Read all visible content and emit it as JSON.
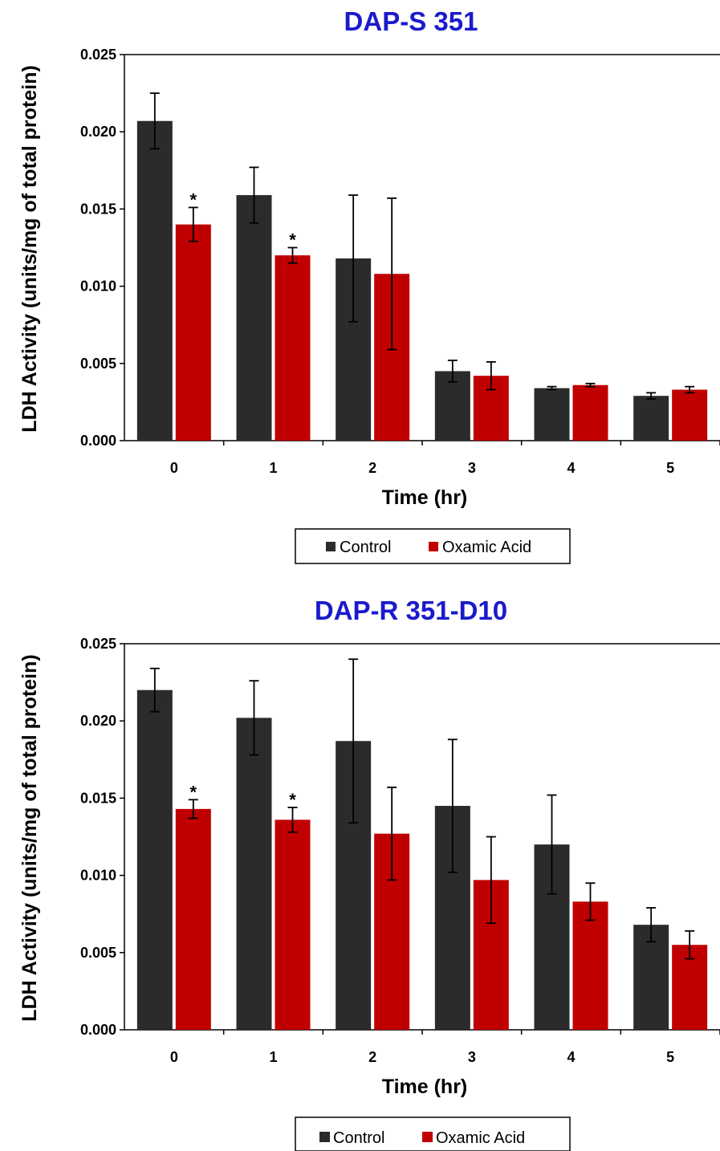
{
  "colors": {
    "title": "#1a1acc",
    "control": "#2b2b2b",
    "oxamic": "#c00000",
    "axis": "#000000"
  },
  "chart_data": [
    {
      "type": "bar",
      "title": "DAP-S  351",
      "xlabel": "Time (hr)",
      "ylabel": "LDH Activity (units/mg of total protein)",
      "categories": [
        "0",
        "1",
        "2",
        "3",
        "4",
        "5"
      ],
      "ylim": [
        0,
        0.025
      ],
      "yticks": [
        "0.000",
        "0.005",
        "0.010",
        "0.015",
        "0.020",
        "0.025"
      ],
      "series": [
        {
          "name": "Control",
          "values": [
            0.0207,
            0.0159,
            0.0118,
            0.0045,
            0.0034,
            0.0029
          ],
          "errors": [
            0.0018,
            0.0018,
            0.0041,
            0.0007,
            0.0001,
            0.0002
          ]
        },
        {
          "name": "Oxamic Acid",
          "values": [
            0.014,
            0.012,
            0.0108,
            0.0042,
            0.0036,
            0.0033
          ],
          "errors": [
            0.0011,
            0.0005,
            0.0049,
            0.0009,
            0.0001,
            0.0002
          ]
        }
      ],
      "significance": [
        {
          "category": "0",
          "series": "Oxamic Acid",
          "label": "*"
        },
        {
          "category": "1",
          "series": "Oxamic Acid",
          "label": "*"
        }
      ],
      "legend_position": "bottom"
    },
    {
      "type": "bar",
      "title": "DAP-R  351-D10",
      "xlabel": "Time (hr)",
      "ylabel": "LDH Activity (units/mg of total protein)",
      "categories": [
        "0",
        "1",
        "2",
        "3",
        "4",
        "5"
      ],
      "ylim": [
        0,
        0.025
      ],
      "yticks": [
        "0.000",
        "0.005",
        "0.010",
        "0.015",
        "0.020",
        "0.025"
      ],
      "series": [
        {
          "name": "Control",
          "values": [
            0.022,
            0.0202,
            0.0187,
            0.0145,
            0.012,
            0.0068
          ],
          "errors": [
            0.0014,
            0.0024,
            0.0053,
            0.0043,
            0.0032,
            0.0011
          ]
        },
        {
          "name": "Oxamic Acid",
          "values": [
            0.0143,
            0.0136,
            0.0127,
            0.0097,
            0.0083,
            0.0055
          ],
          "errors": [
            0.0006,
            0.0008,
            0.003,
            0.0028,
            0.0012,
            0.0009
          ]
        }
      ],
      "significance": [
        {
          "category": "0",
          "series": "Oxamic Acid",
          "label": "*"
        },
        {
          "category": "1",
          "series": "Oxamic Acid",
          "label": "*"
        }
      ],
      "legend_position": "bottom"
    }
  ]
}
